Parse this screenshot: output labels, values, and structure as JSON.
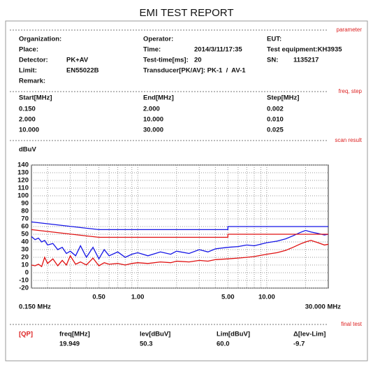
{
  "header": {
    "title": "EMI TEST REPORT"
  },
  "parameter": {
    "section": "parameter",
    "organization": "Organization:",
    "operator": "Operator:",
    "eut": "EUT:",
    "place": "Place:",
    "time_label": "Time:",
    "time": "2014/3/11/17:35",
    "test_equipment": "Test equipment:KH3935",
    "detector_label": "Detector:",
    "detector": "PK+AV",
    "test_time_label": "Test-time[ms]:",
    "test_time": "20",
    "sn_label": "SN:",
    "sn": "1135217",
    "limit_label": "Limit:",
    "limit": "EN55022B",
    "transducer": "Transducer[PK/AV]: PK-1  /  AV-1",
    "remark": "Remark:"
  },
  "freq_step": {
    "section": "freq, step",
    "headers": [
      "Start[MHz]",
      "End[MHz]",
      "Step[MHz]"
    ],
    "rows": [
      [
        "0.150",
        "2.000",
        "0.002"
      ],
      [
        "2.000",
        "10.000",
        "0.010"
      ],
      [
        "10.000",
        "30.000",
        "0.025"
      ]
    ]
  },
  "scan_result": {
    "section": "scan result"
  },
  "chart_data": {
    "type": "line",
    "ylabel": "dBuV",
    "xscale": "log",
    "xlim": [
      0.15,
      30
    ],
    "xlim_labels": [
      "0.150 MHz",
      "30.000 MHz"
    ],
    "xticks": [
      {
        "value": 0.5,
        "label": "0.50"
      },
      {
        "value": 1,
        "label": "1.00"
      },
      {
        "value": 5,
        "label": "5.00"
      },
      {
        "value": 10,
        "label": "10.00"
      }
    ],
    "xgrid": [
      0.2,
      0.3,
      0.4,
      0.6,
      0.7,
      0.8,
      0.9,
      2,
      3,
      4,
      6,
      7,
      8,
      9,
      20
    ],
    "ylim": [
      -20,
      140
    ],
    "yticks": [
      -20,
      -10,
      0,
      10,
      20,
      30,
      40,
      50,
      60,
      70,
      80,
      90,
      100,
      110,
      120,
      130,
      140
    ],
    "grid": true,
    "series": [
      {
        "color": "#1414e6",
        "x": [
          0.15,
          0.16,
          0.17,
          0.18,
          0.19,
          0.2,
          0.22,
          0.24,
          0.26,
          0.28,
          0.3,
          0.33,
          0.36,
          0.4,
          0.45,
          0.5,
          0.55,
          0.6,
          0.7,
          0.8,
          0.9,
          1,
          1.2,
          1.5,
          1.8,
          2,
          2.5,
          3,
          3.5,
          4,
          5,
          6,
          7,
          8,
          10,
          12,
          14,
          16,
          18,
          20,
          22,
          25,
          28,
          30
        ],
        "values": [
          47,
          43,
          45,
          40,
          42,
          36,
          38,
          30,
          33,
          25,
          28,
          22,
          35,
          20,
          33,
          18,
          30,
          22,
          27,
          20,
          24,
          26,
          22,
          27,
          24,
          28,
          25,
          30,
          27,
          31,
          33,
          34,
          36,
          35,
          39,
          41,
          44,
          48,
          52,
          55,
          53,
          51,
          49,
          50
        ]
      },
      {
        "color": "#e01010",
        "x": [
          0.15,
          0.16,
          0.17,
          0.18,
          0.19,
          0.2,
          0.22,
          0.24,
          0.26,
          0.28,
          0.3,
          0.33,
          0.36,
          0.4,
          0.45,
          0.5,
          0.55,
          0.6,
          0.7,
          0.8,
          0.9,
          1,
          1.2,
          1.5,
          1.8,
          2,
          2.5,
          3,
          3.5,
          4,
          5,
          6,
          7,
          8,
          10,
          12,
          14,
          16,
          18,
          20,
          22,
          25,
          28,
          30
        ],
        "values": [
          10,
          9,
          11,
          8,
          20,
          12,
          18,
          9,
          16,
          10,
          22,
          11,
          14,
          10,
          19,
          9,
          13,
          11,
          12,
          10,
          12,
          13,
          12,
          14,
          13,
          15,
          14,
          16,
          15,
          17,
          18,
          19,
          20,
          21,
          24,
          26,
          29,
          33,
          37,
          40,
          42,
          39,
          36,
          37
        ]
      },
      {
        "color": "#1414e6",
        "x": [
          0.15,
          0.5,
          5,
          5,
          30
        ],
        "values": [
          66,
          56,
          56,
          60,
          60
        ]
      },
      {
        "color": "#e01010",
        "x": [
          0.15,
          0.5,
          5,
          5,
          30
        ],
        "values": [
          56,
          46,
          46,
          50,
          50
        ]
      }
    ]
  },
  "final_test": {
    "section": "final test",
    "detector": "[QP]",
    "headers": [
      "freq[MHz]",
      "lev[dBuV]",
      "Lim[dBuV]",
      "Δ[lev-Lim]"
    ],
    "values": [
      "19.949",
      "50.3",
      "60.0",
      "-9.7"
    ]
  }
}
